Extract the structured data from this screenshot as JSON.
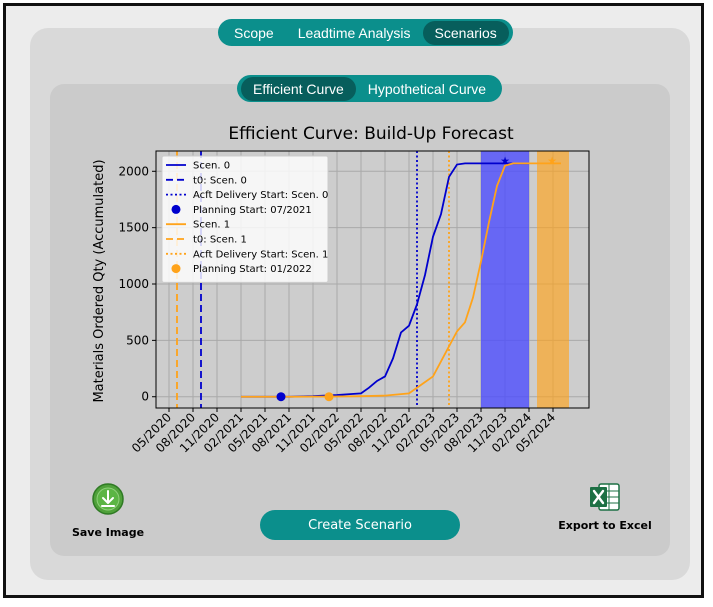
{
  "nav": {
    "tabs": [
      {
        "label": "Scope",
        "active": false
      },
      {
        "label": "Leadtime Analysis",
        "active": false
      },
      {
        "label": "Scenarios",
        "active": true
      }
    ]
  },
  "subnav": {
    "tabs": [
      {
        "label": "Efficient Curve",
        "active": true
      },
      {
        "label": "Hypothetical Curve",
        "active": false
      }
    ]
  },
  "actions": {
    "save_image": "Save Image",
    "create_scenario": "Create Scenario",
    "export_excel": "Export to Excel"
  },
  "icons": {
    "save_image": "download-icon",
    "export_excel": "excel-icon"
  },
  "colors": {
    "accent": "#0b8f8c",
    "accent_dark": "#075e5c",
    "scen0": "#0000cd",
    "scen1": "#ffa31a",
    "excel_green": "#1d7044"
  },
  "chart_data": {
    "type": "line",
    "title": "Efficient Curve: Build-Up Forecast",
    "ylabel": "Materials Ordered Qty (Accumulated)",
    "xlabel": "",
    "x_ticks": [
      "05/2020",
      "08/2020",
      "11/2020",
      "02/2021",
      "05/2021",
      "08/2021",
      "11/2021",
      "02/2022",
      "05/2022",
      "08/2022",
      "11/2022",
      "02/2023",
      "05/2023",
      "08/2023",
      "11/2023",
      "02/2024",
      "05/2024"
    ],
    "y_ticks": [
      0,
      500,
      1000,
      1500,
      2000
    ],
    "ylim": [
      -100,
      2180
    ],
    "grid": true,
    "legend": "top-left",
    "series": [
      {
        "name": "Scen. 0",
        "color": "#0000cd",
        "x": [
          "2021-02",
          "2021-08",
          "2021-11",
          "2022-02",
          "2022-05",
          "2022-06",
          "2022-07",
          "2022-08",
          "2022-09",
          "2022-10",
          "2022-11",
          "2022-12",
          "2023-01",
          "2023-02",
          "2023-03",
          "2023-04",
          "2023-05",
          "2023-06",
          "2023-08",
          "2023-11",
          "2024-02"
        ],
        "y": [
          0,
          0,
          5,
          15,
          30,
          80,
          140,
          180,
          340,
          570,
          630,
          820,
          1080,
          1420,
          1620,
          1950,
          2060,
          2070,
          2070,
          2070,
          2070
        ]
      },
      {
        "name": "Scen. 1",
        "color": "#ffa31a",
        "x": [
          "2021-02",
          "2021-08",
          "2022-02",
          "2022-05",
          "2022-08",
          "2022-11",
          "2023-02",
          "2023-05",
          "2023-06",
          "2023-07",
          "2023-08",
          "2023-09",
          "2023-10",
          "2023-11",
          "2023-12",
          "2024-02",
          "2024-05",
          "2024-06"
        ],
        "y": [
          0,
          0,
          2,
          5,
          10,
          30,
          180,
          580,
          660,
          880,
          1200,
          1550,
          1870,
          2050,
          2070,
          2070,
          2070,
          2070
        ]
      }
    ],
    "markers": [
      {
        "label": "t0: Scen. 0",
        "style": "dashed",
        "color": "#0000cd",
        "x": "2020-09"
      },
      {
        "label": "t0: Scen. 1",
        "style": "dashed",
        "color": "#ffa31a",
        "x": "2020-06"
      },
      {
        "label": "Acft Delivery Start: Scen. 0",
        "style": "dotted",
        "color": "#0000cd",
        "x": "2022-12"
      },
      {
        "label": "Acft Delivery Start: Scen. 1",
        "style": "dotted",
        "color": "#ffa31a",
        "x": "2023-04"
      }
    ],
    "planning_start": [
      {
        "label": "Planning Start: 07/2021",
        "color": "#0000cd",
        "x": "2021-07",
        "y": 0
      },
      {
        "label": "Planning Start: 01/2022",
        "color": "#ffa31a",
        "x": "2022-01",
        "y": 0
      }
    ],
    "bands": [
      {
        "color": "#4a4aff",
        "x_start": "2023-08",
        "x_end": "2024-02"
      },
      {
        "color": "#ffa31a",
        "x_start": "2024-03",
        "x_end": "2024-07"
      }
    ]
  }
}
